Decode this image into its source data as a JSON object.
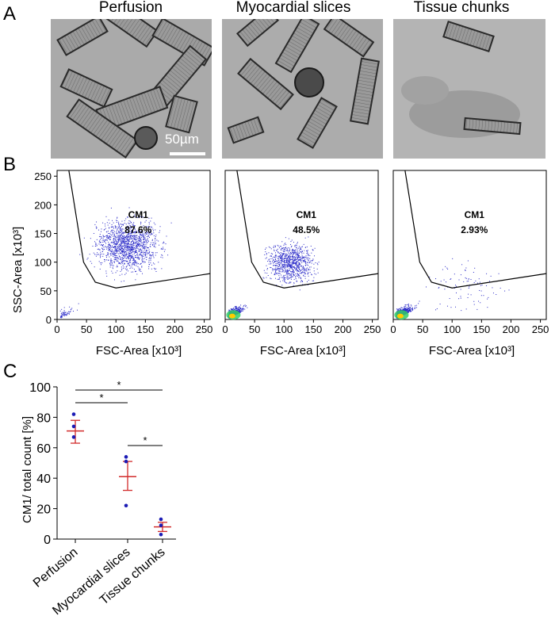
{
  "panel_labels": {
    "a": "A",
    "b": "B",
    "c": "C"
  },
  "panel_a": {
    "titles": [
      "Perfusion",
      "Myocardial slices",
      "Tissue chunks"
    ],
    "scale_bar": "50µm"
  },
  "panel_b": {
    "xlabel": "FSC-Area [x10³]",
    "ylabel": "SSC-Area [x10³]",
    "x_ticks": [
      "0",
      "50",
      "100",
      "150",
      "200",
      "250"
    ],
    "y_ticks": [
      "0",
      "50",
      "100",
      "150",
      "200",
      "250"
    ],
    "gate_name": "CM1",
    "plots": [
      {
        "gate_pct": "87.6%"
      },
      {
        "gate_pct": "48.5%"
      },
      {
        "gate_pct": "2.93%"
      }
    ]
  },
  "chart_data": {
    "type": "scatter",
    "ylabel": "CM1/ total count [%]",
    "categories": [
      "Perfusion",
      "Myocardial slices",
      "Tissue chunks"
    ],
    "ylim": [
      0,
      100
    ],
    "y_ticks": [
      "0",
      "20",
      "40",
      "60",
      "80",
      "100"
    ],
    "points": [
      [
        82,
        74,
        67
      ],
      [
        54,
        51,
        22
      ],
      [
        13,
        9,
        3
      ]
    ],
    "mean": [
      71,
      41,
      8
    ],
    "sem_upper": [
      78,
      51,
      11
    ],
    "sem_lower": [
      63,
      32,
      5
    ],
    "significance": [
      "*",
      "*",
      "*"
    ],
    "colors": {
      "points": "#1b1bb5",
      "mean": "#d22b2b"
    }
  }
}
